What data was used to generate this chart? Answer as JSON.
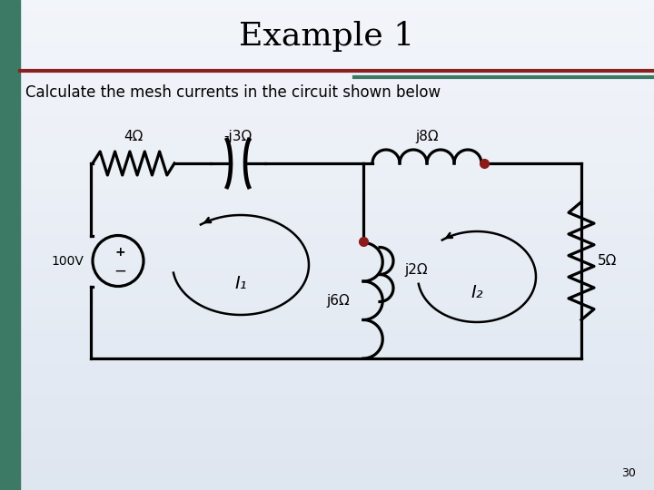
{
  "title": "Example 1",
  "subtitle": "Calculate the mesh currents in the circuit shown below",
  "page_number": "30",
  "title_fontsize": 26,
  "subtitle_fontsize": 12,
  "circuit": {
    "labels": {
      "R1": "4Ω",
      "C1": "-j3Ω",
      "L1": "j8Ω",
      "L2": "j2Ω",
      "L3": "j6Ω",
      "R2": "5Ω",
      "VS": "100V",
      "I1": "I₁",
      "I2": "I₂"
    }
  }
}
